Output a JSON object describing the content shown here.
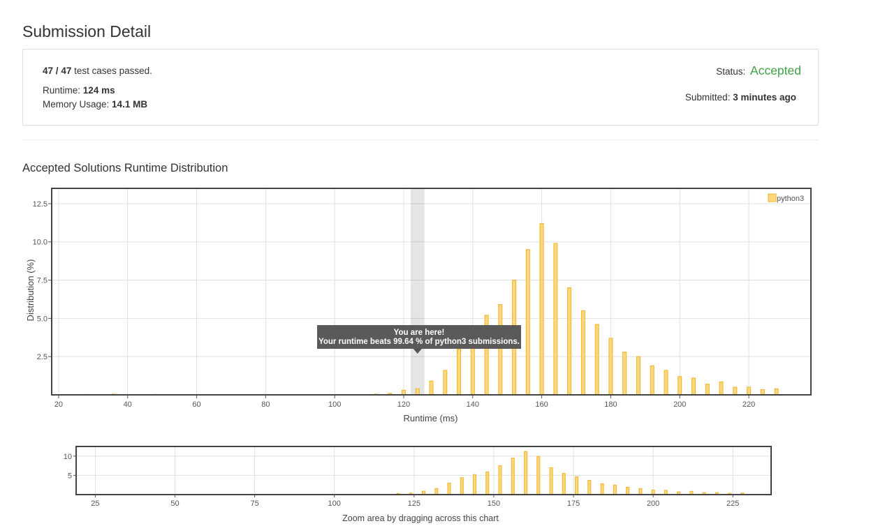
{
  "page": {
    "title": "Submission Detail"
  },
  "summary": {
    "passed": "47",
    "sep": "/",
    "total": "47",
    "passed_suffix": "test cases passed.",
    "runtime_label": "Runtime:",
    "runtime_value": "124 ms",
    "memory_label": "Memory Usage:",
    "memory_value": "14.1 MB",
    "status_label": "Status:",
    "status_value": "Accepted",
    "submitted_label": "Submitted:",
    "submitted_value": "3 minutes ago"
  },
  "section_title": "Accepted Solutions Runtime Distribution",
  "colors": {
    "bar_fill": "#fbd87d",
    "bar_stroke": "#f0b429",
    "accepted": "#43a047",
    "tooltip_bg": "#555555"
  },
  "chart_data": [
    {
      "type": "bar",
      "xlabel": "Runtime (ms)",
      "ylabel": "Distribution (%)",
      "xlim": [
        18,
        238
      ],
      "ylim": [
        0,
        13.5
      ],
      "xticks": [
        20,
        40,
        60,
        80,
        100,
        120,
        140,
        160,
        180,
        200,
        220
      ],
      "yticks": [
        2.5,
        5.0,
        7.5,
        10.0,
        12.5
      ],
      "grid": true,
      "legend": "top-right",
      "series": [
        {
          "name": "python3",
          "x": [
            28,
            36,
            48,
            112,
            116,
            120,
            124,
            128,
            132,
            136,
            140,
            144,
            148,
            152,
            156,
            160,
            164,
            168,
            172,
            176,
            180,
            184,
            188,
            192,
            196,
            200,
            204,
            208,
            212,
            216,
            220,
            224,
            228
          ],
          "values": [
            0.03,
            0.05,
            0.03,
            0.05,
            0.1,
            0.3,
            0.4,
            0.9,
            1.6,
            3.0,
            4.4,
            5.2,
            5.9,
            7.5,
            9.5,
            11.2,
            9.9,
            7.0,
            5.5,
            4.6,
            3.7,
            2.8,
            2.5,
            1.9,
            1.6,
            1.2,
            1.1,
            0.7,
            0.85,
            0.5,
            0.5,
            0.35,
            0.4
          ]
        }
      ],
      "annotation": {
        "highlight_x": 124,
        "title": "You are here!",
        "text": "Your runtime beats 99.64 % of python3 submissions."
      }
    },
    {
      "type": "bar",
      "xlim": [
        19,
        237
      ],
      "ylim": [
        0,
        12.5
      ],
      "xticks": [
        25,
        50,
        75,
        100,
        125,
        150,
        175,
        200,
        225
      ],
      "yticks": [
        5,
        10
      ],
      "grid": true,
      "caption": "Zoom area by dragging across this chart"
    }
  ]
}
